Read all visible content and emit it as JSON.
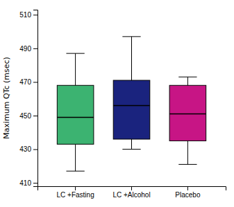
{
  "chart_data": {
    "type": "box",
    "categories": [
      "LC +Fasting",
      "LC +Alcohol",
      "Placebo"
    ],
    "boxes": [
      {
        "whislo": 417,
        "q1": 433,
        "med": 449,
        "q3": 468,
        "whishi": 487
      },
      {
        "whislo": 430,
        "q1": 436,
        "med": 456,
        "q3": 471,
        "whishi": 497
      },
      {
        "whislo": 421,
        "q1": 435,
        "med": 451,
        "q3": 468,
        "whishi": 473
      }
    ],
    "colors": [
      "#3cb371",
      "#1a237e",
      "#c71585"
    ],
    "ylabel": "Maximum QTc  (msec)",
    "ylim": [
      408,
      513
    ],
    "yticks": [
      410,
      430,
      450,
      470,
      490,
      510
    ]
  }
}
